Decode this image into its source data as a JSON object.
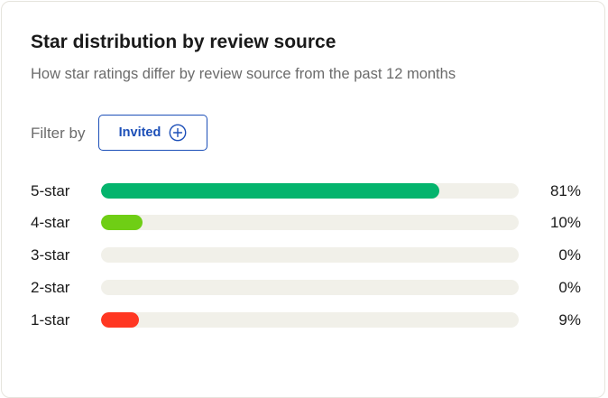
{
  "card": {
    "title": "Star distribution by review source",
    "subtitle": "How star ratings differ by review source from the past 12 months"
  },
  "filter": {
    "label": "Filter by",
    "button_label": "Invited",
    "button_icon": "plus-circle-icon"
  },
  "distribution": [
    {
      "label": "5-star",
      "percent": 81,
      "percent_text": "81%",
      "color": "#04b46d"
    },
    {
      "label": "4-star",
      "percent": 10,
      "percent_text": "10%",
      "color": "#6fce15"
    },
    {
      "label": "3-star",
      "percent": 0,
      "percent_text": "0%",
      "color": "#ffce00"
    },
    {
      "label": "2-star",
      "percent": 0,
      "percent_text": "0%",
      "color": "#ff8622"
    },
    {
      "label": "1-star",
      "percent": 9,
      "percent_text": "9%",
      "color": "#ff3722"
    }
  ]
}
